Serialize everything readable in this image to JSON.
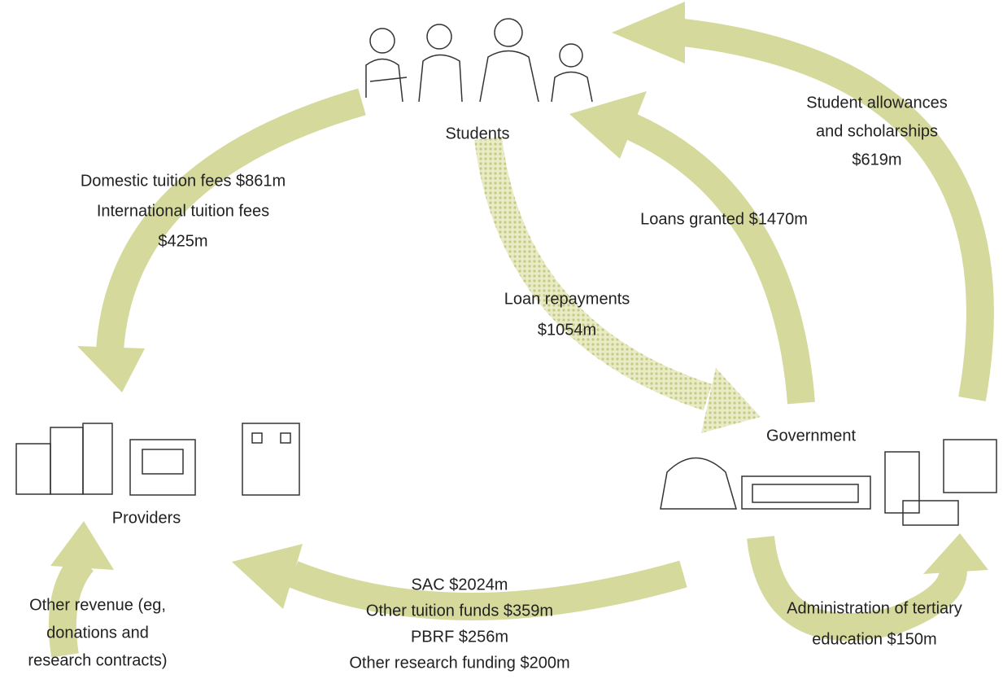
{
  "nodes": [
    {
      "label": "Students"
    },
    {
      "label": "Providers"
    },
    {
      "label": "Government"
    }
  ],
  "flows": [
    {
      "lines": [
        "Domestic tuition fees $861m",
        "International tuition fees",
        "$425m"
      ]
    },
    {
      "lines": [
        "Student allowances",
        "and scholarships",
        "$619m"
      ]
    },
    {
      "lines": [
        "Loans granted $1470m"
      ]
    },
    {
      "lines": [
        "Loan repayments",
        "$1054m"
      ]
    },
    {
      "lines": [
        "SAC $2024m",
        "Other tuition funds $359m",
        "PBRF $256m",
        "Other research funding $200m"
      ]
    },
    {
      "lines": [
        "Administration of tertiary",
        "education $150m"
      ]
    },
    {
      "lines": [
        "Other revenue (eg,",
        "donations and",
        "research contracts)"
      ]
    }
  ]
}
